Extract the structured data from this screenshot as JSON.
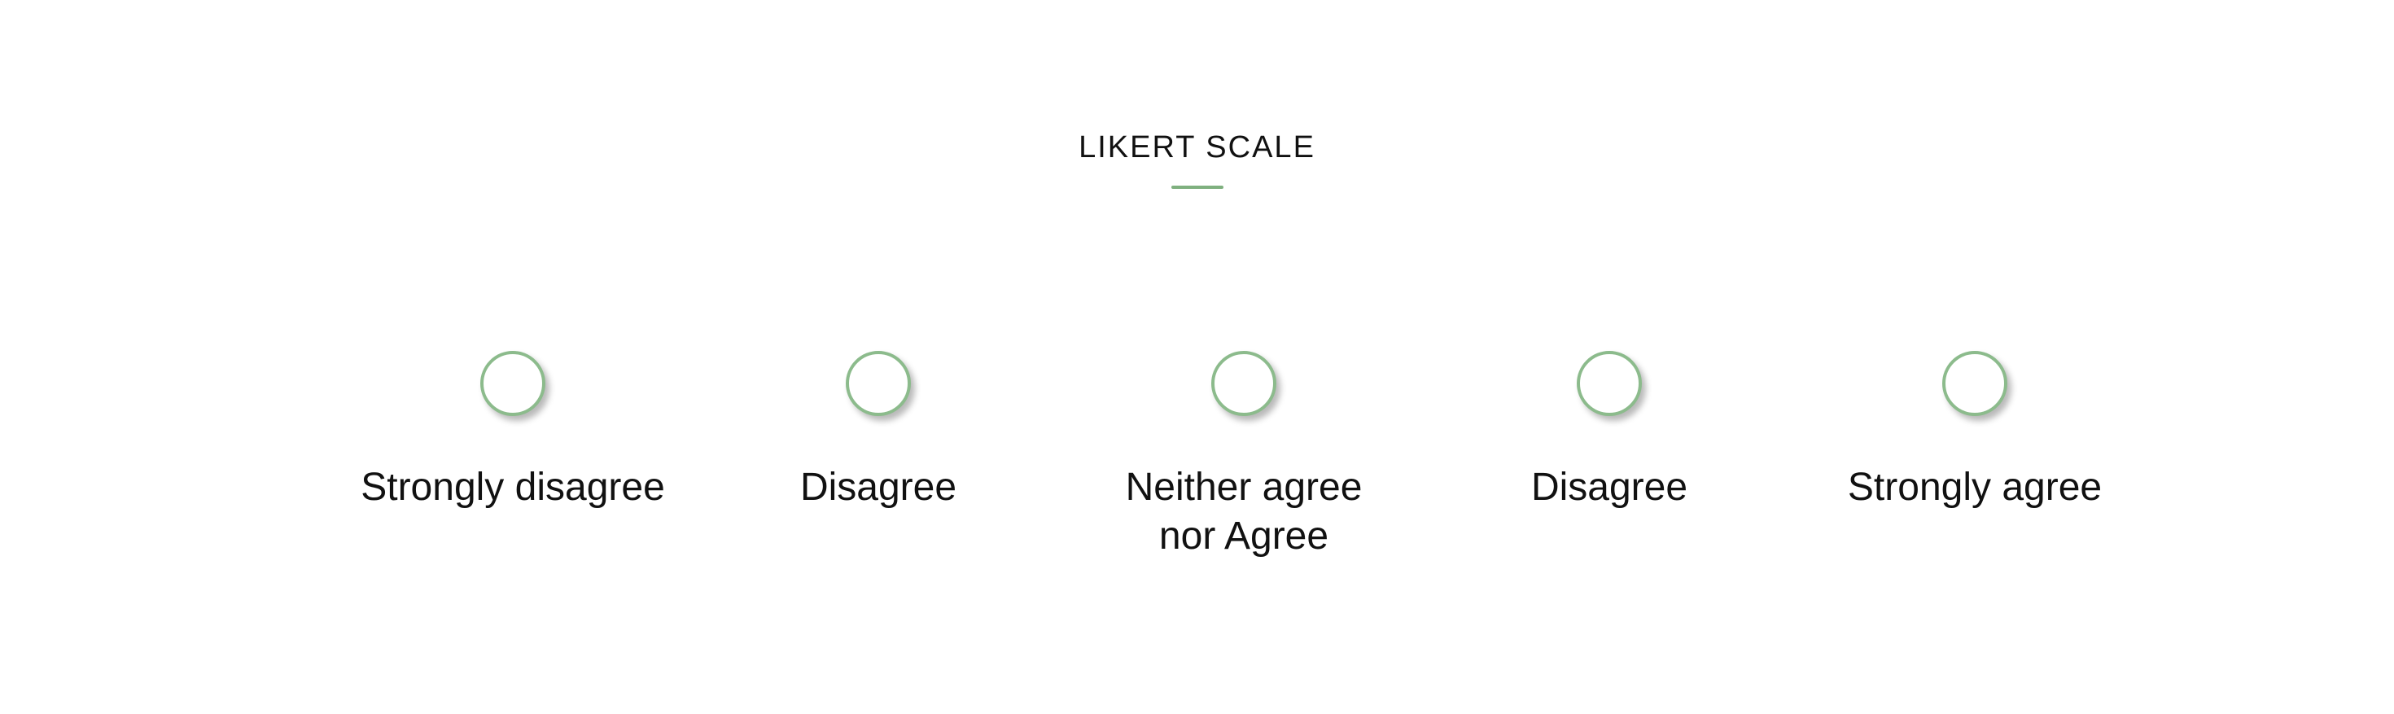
{
  "title": "LIKERT SCALE",
  "accent_color": "#8cbb8c",
  "options": [
    {
      "label": "Strongly disagree",
      "selected": false
    },
    {
      "label": "Disagree",
      "selected": false
    },
    {
      "label_line1": "Neither agree",
      "label_line2": "nor Agree",
      "selected": false
    },
    {
      "label": "Disagree",
      "selected": false
    },
    {
      "label": "Strongly agree",
      "selected": false
    }
  ]
}
